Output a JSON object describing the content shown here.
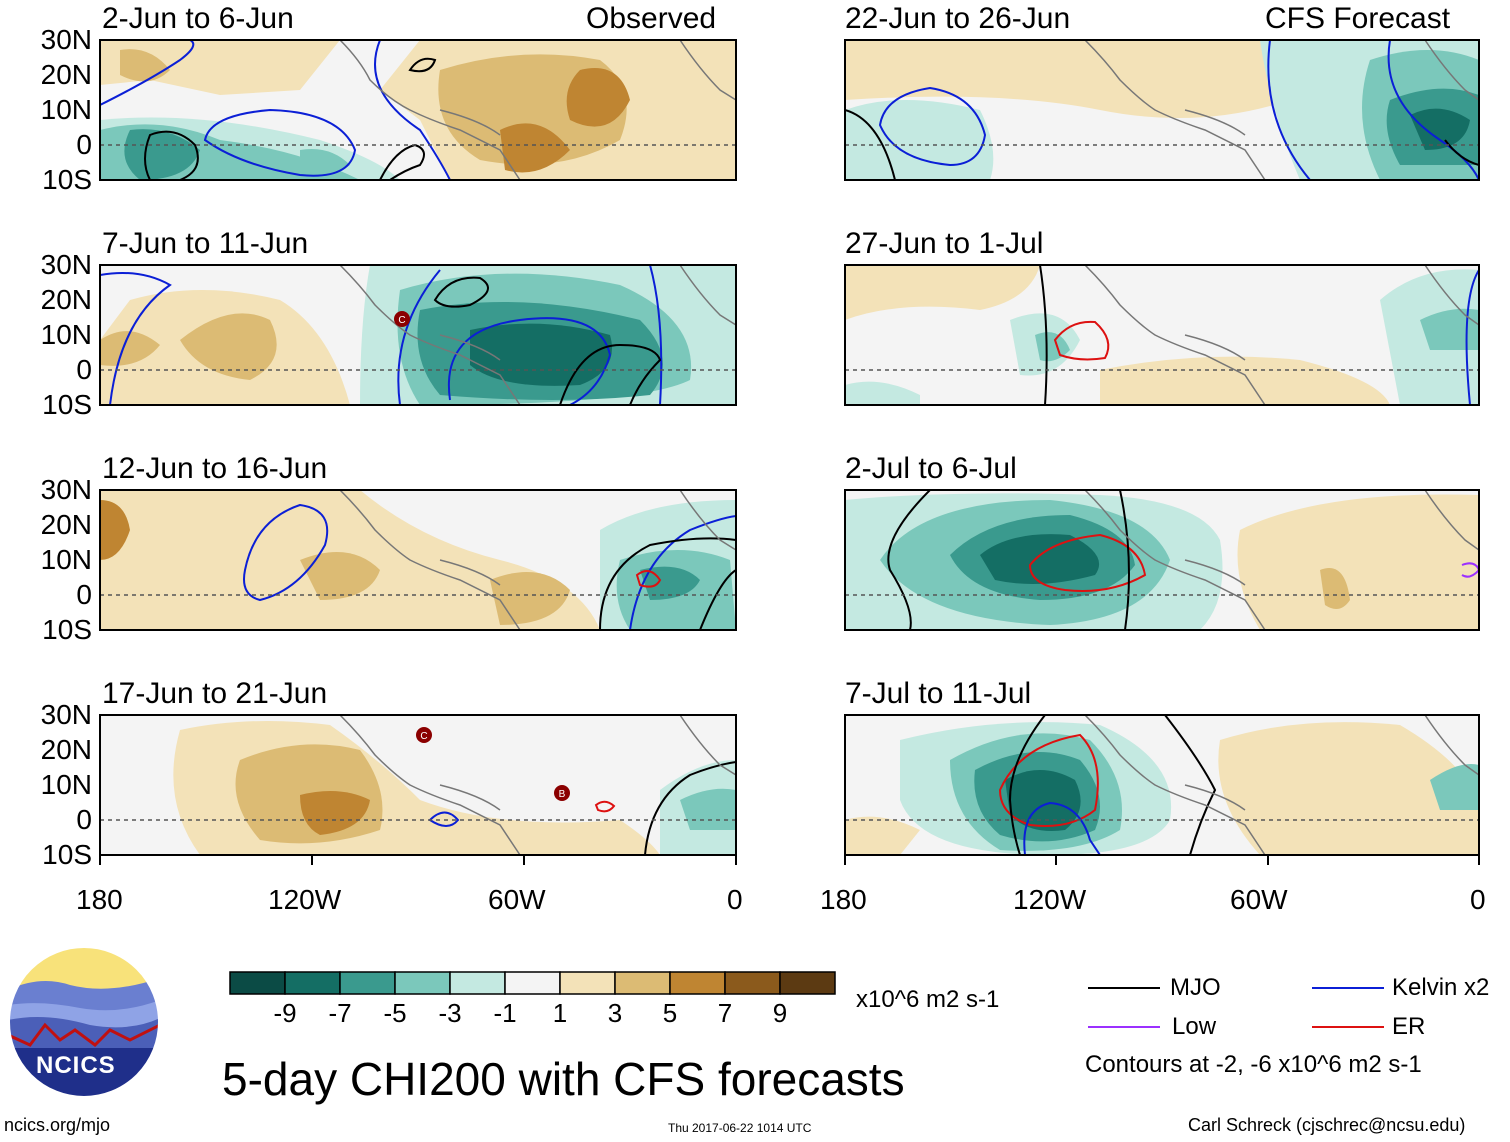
{
  "title": "5-day CHI200 with CFS forecasts",
  "colorbar": {
    "units": "x10^6 m2 s-1",
    "ticks": [
      "-9",
      "-7",
      "-5",
      "-3",
      "-1",
      "1",
      "3",
      "5",
      "7",
      "9"
    ],
    "colors": [
      "#0b4b45",
      "#146e64",
      "#3a9a8e",
      "#7bc8bb",
      "#c4e9e1",
      "#f4f4f4",
      "#f3e2b8",
      "#dcbb74",
      "#bf8532",
      "#8b5a1c",
      "#5c3a12"
    ]
  },
  "axes": {
    "lat_labels": [
      "30N",
      "20N",
      "10N",
      "0",
      "10S"
    ],
    "lon_labels": [
      "180",
      "120W",
      "60W",
      "0"
    ]
  },
  "panels": {
    "left": [
      {
        "title": "2-Jun to 6-Jun",
        "tag": "Observed"
      },
      {
        "title": "7-Jun to 11-Jun",
        "tag": ""
      },
      {
        "title": "12-Jun to 16-Jun",
        "tag": ""
      },
      {
        "title": "17-Jun to 21-Jun",
        "tag": ""
      }
    ],
    "right": [
      {
        "title": "22-Jun to 26-Jun",
        "tag": "CFS Forecast"
      },
      {
        "title": "27-Jun to 1-Jul",
        "tag": ""
      },
      {
        "title": "2-Jul to 6-Jul",
        "tag": ""
      },
      {
        "title": "7-Jul to 11-Jul",
        "tag": ""
      }
    ]
  },
  "legend": {
    "items": [
      {
        "label": "MJO",
        "color": "#000000"
      },
      {
        "label": "Kelvin x2",
        "color": "#0b1fd6"
      },
      {
        "label": "Low",
        "color": "#9b30ff"
      },
      {
        "label": "ER",
        "color": "#dd1111"
      }
    ],
    "note": "Contours at -2, -6 x10^6 m2 s-1"
  },
  "logo": {
    "text": "NCICS"
  },
  "footer": {
    "left": "ncics.org/mjo",
    "center": "Thu 2017-06-22 1014 UTC",
    "right": "Carl Schreck (cjschrec@ncsu.edu)"
  },
  "storm_markers": [
    "C",
    "C",
    "B"
  ]
}
